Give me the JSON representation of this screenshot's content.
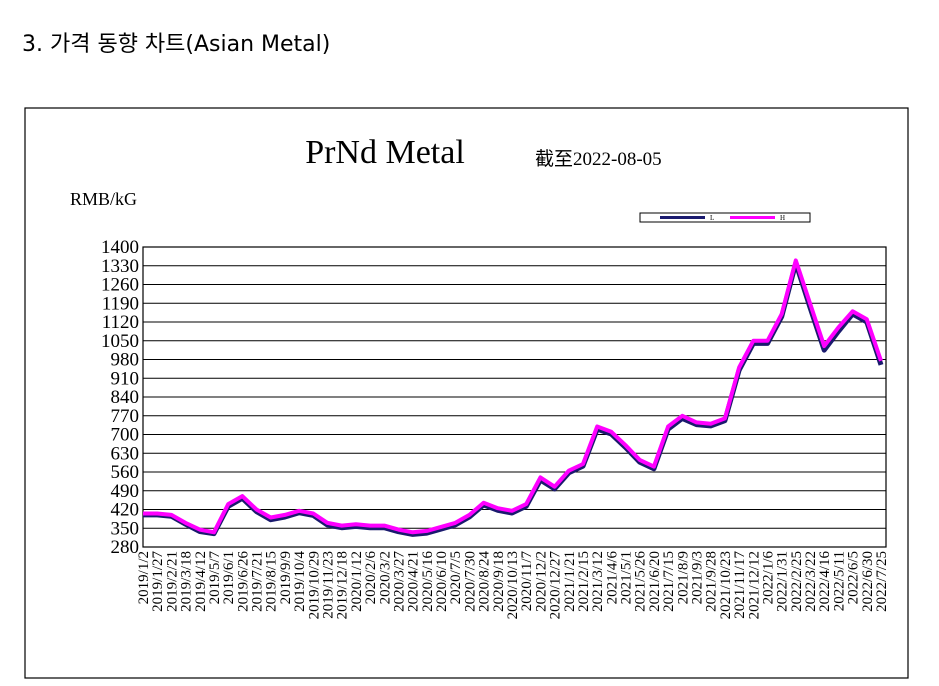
{
  "header": {
    "title": "3. 가격 동향 차트(Asian Metal)"
  },
  "chart_data": {
    "type": "line",
    "title": "PrNd Metal",
    "subtitle": "截至2022-08-05",
    "y_label": "RMB/kG",
    "categories": [
      "2019/1/2",
      "2019/1/27",
      "2019/2/21",
      "2019/3/18",
      "2019/4/12",
      "2019/5/7",
      "2019/6/1",
      "2019/6/26",
      "2019/7/21",
      "2019/8/15",
      "2019/9/9",
      "2019/10/4",
      "2019/10/29",
      "2019/11/23",
      "2019/12/18",
      "2020/1/12",
      "2020/2/6",
      "2020/3/2",
      "2020/3/27",
      "2020/4/21",
      "2020/5/16",
      "2020/6/10",
      "2020/7/5",
      "2020/7/30",
      "2020/8/24",
      "2020/9/18",
      "2020/10/13",
      "2020/11/7",
      "2020/12/2",
      "2020/12/27",
      "2021/1/21",
      "2021/2/15",
      "2021/3/12",
      "2021/4/6",
      "2021/5/1",
      "2021/5/26",
      "2021/6/20",
      "2021/7/15",
      "2021/8/9",
      "2021/9/3",
      "2021/9/28",
      "2021/10/23",
      "2021/11/17",
      "2021/12/12",
      "2022/1/6",
      "2022/1/31",
      "2022/2/25",
      "2022/3/22",
      "2022/4/16",
      "2022/5/11",
      "2022/6/5",
      "2022/6/30",
      "2022/7/25"
    ],
    "series": [
      {
        "name": "L",
        "color": "#1a1a6e",
        "values": [
          400,
          400,
          395,
          365,
          338,
          330,
          432,
          462,
          412,
          382,
          392,
          408,
          398,
          362,
          352,
          357,
          352,
          352,
          337,
          327,
          332,
          347,
          362,
          392,
          437,
          417,
          407,
          432,
          530,
          497,
          557,
          582,
          720,
          702,
          652,
          597,
          572,
          720,
          760,
          737,
          732,
          752,
          940,
          1040,
          1040,
          1140,
          1340,
          1175,
          1015,
          1085,
          1150,
          1120,
          960
        ]
      },
      {
        "name": "H",
        "color": "#ff00ff",
        "values": [
          405,
          405,
          400,
          370,
          345,
          335,
          440,
          470,
          420,
          390,
          400,
          415,
          405,
          370,
          360,
          365,
          360,
          360,
          345,
          335,
          340,
          355,
          370,
          400,
          445,
          425,
          415,
          440,
          540,
          505,
          565,
          590,
          730,
          710,
          660,
          605,
          580,
          730,
          770,
          745,
          740,
          760,
          950,
          1050,
          1050,
          1150,
          1350,
          1190,
          1030,
          1100,
          1160,
          1130,
          975
        ]
      }
    ],
    "ylim": [
      280,
      1400
    ],
    "yticks": [
      280,
      350,
      420,
      490,
      560,
      630,
      700,
      770,
      840,
      910,
      980,
      1050,
      1120,
      1190,
      1260,
      1330,
      1400
    ],
    "grid": true
  }
}
